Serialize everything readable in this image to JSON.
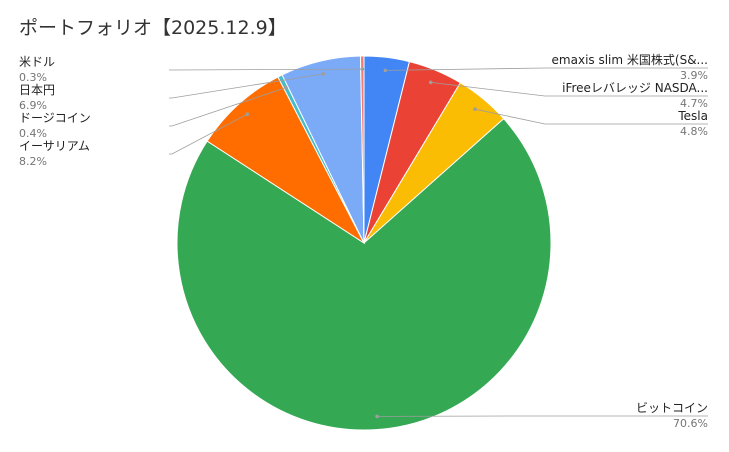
{
  "chart_data": {
    "type": "pie",
    "title": "ポートフォリオ【2025.12.9】",
    "start_angle_deg": 0,
    "direction": "clockwise",
    "slices": [
      {
        "label": "emaxis slim 米国株式(S&...",
        "value": 3.9,
        "percent_label": "3.9%",
        "color": "#4285f4",
        "side": "right"
      },
      {
        "label": "iFreeレバレッジ NASDA...",
        "value": 4.7,
        "percent_label": "4.7%",
        "color": "#ea4335",
        "side": "right"
      },
      {
        "label": "Tesla",
        "value": 4.8,
        "percent_label": "4.8%",
        "color": "#fbbc04",
        "side": "right"
      },
      {
        "label": "ビットコイン",
        "value": 70.6,
        "percent_label": "70.6%",
        "color": "#34a853",
        "side": "right"
      },
      {
        "label": "イーサリアム",
        "value": 8.2,
        "percent_label": "8.2%",
        "color": "#ff6d01",
        "side": "left"
      },
      {
        "label": "ドージコイン",
        "value": 0.4,
        "percent_label": "0.4%",
        "color": "#46bdc6",
        "side": "left"
      },
      {
        "label": "日本円",
        "value": 6.9,
        "percent_label": "6.9%",
        "color": "#7baaf7",
        "side": "left"
      },
      {
        "label": "米ドル",
        "value": 0.3,
        "percent_label": "0.3%",
        "color": "#f07b72",
        "side": "left"
      }
    ],
    "legend": "callout-labels"
  },
  "colors": {
    "background": "#ffffff",
    "label_text": "#222222",
    "percent_text": "#757575",
    "leader_line": "#9e9e9e",
    "slice_border": "#ffffff"
  }
}
